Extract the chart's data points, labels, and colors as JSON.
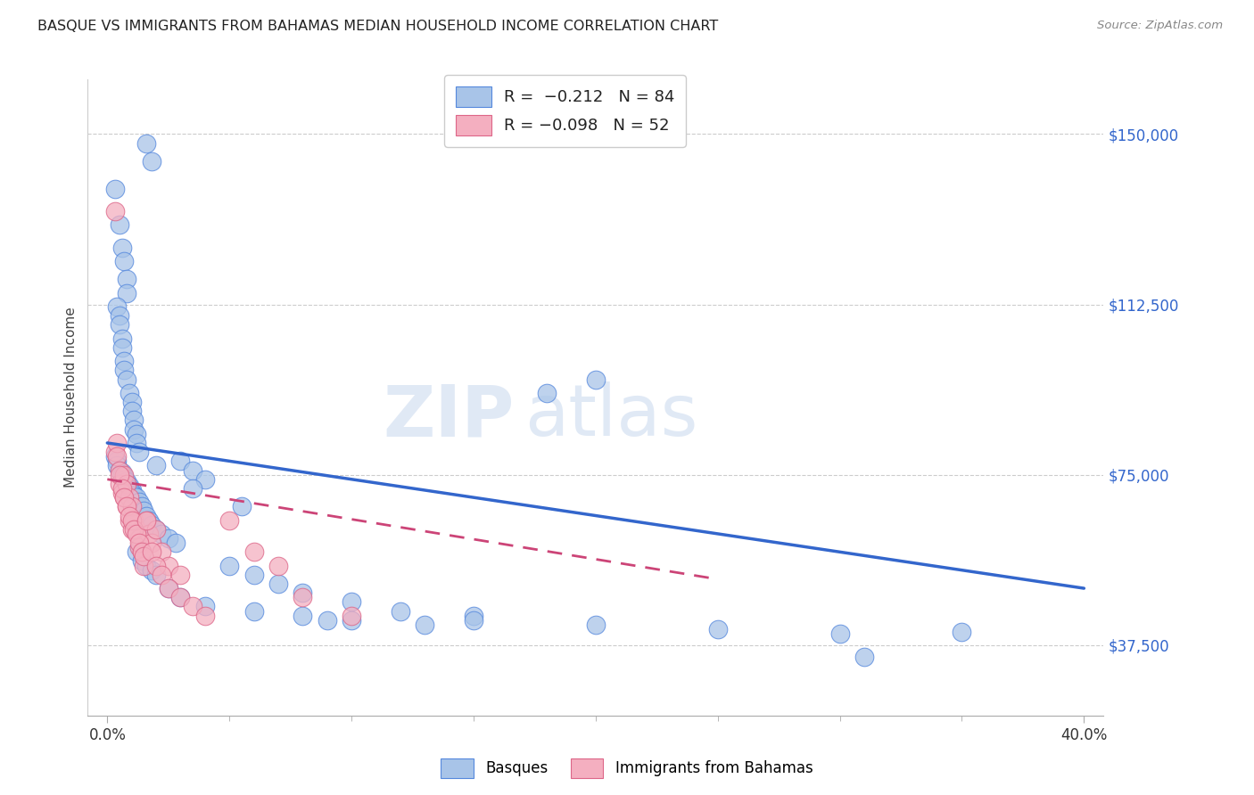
{
  "title": "BASQUE VS IMMIGRANTS FROM BAHAMAS MEDIAN HOUSEHOLD INCOME CORRELATION CHART",
  "source": "Source: ZipAtlas.com",
  "ylabel": "Median Household Income",
  "yticks": [
    37500,
    75000,
    112500,
    150000
  ],
  "ytick_labels": [
    "$37,500",
    "$75,000",
    "$112,500",
    "$150,000"
  ],
  "xlim": [
    0.0,
    0.4
  ],
  "ylim": [
    22000,
    162000
  ],
  "blue_color": "#a8c4e8",
  "pink_color": "#f4afc0",
  "blue_line_color": "#3366cc",
  "pink_line_color": "#cc4477",
  "blue_edge": "#5588dd",
  "pink_edge": "#dd6688",
  "watermark_zip": "ZIP",
  "watermark_atlas": "atlas",
  "blue_trend_x": [
    0.0,
    0.4
  ],
  "blue_trend_y": [
    82000,
    50000
  ],
  "pink_trend_x": [
    0.0,
    0.25
  ],
  "pink_trend_y": [
    74000,
    52000
  ],
  "basque_x": [
    0.016,
    0.018,
    0.003,
    0.005,
    0.006,
    0.007,
    0.008,
    0.008,
    0.004,
    0.005,
    0.005,
    0.006,
    0.006,
    0.007,
    0.007,
    0.008,
    0.009,
    0.01,
    0.01,
    0.011,
    0.011,
    0.012,
    0.012,
    0.013,
    0.003,
    0.004,
    0.004,
    0.005,
    0.006,
    0.006,
    0.007,
    0.007,
    0.008,
    0.008,
    0.009,
    0.009,
    0.01,
    0.01,
    0.011,
    0.012,
    0.013,
    0.014,
    0.015,
    0.016,
    0.017,
    0.018,
    0.02,
    0.022,
    0.025,
    0.028,
    0.03,
    0.035,
    0.04,
    0.05,
    0.06,
    0.07,
    0.08,
    0.1,
    0.12,
    0.15,
    0.012,
    0.014,
    0.016,
    0.018,
    0.02,
    0.025,
    0.03,
    0.04,
    0.06,
    0.08,
    0.1,
    0.15,
    0.2,
    0.25,
    0.3,
    0.35,
    0.31,
    0.2,
    0.18,
    0.02,
    0.035,
    0.055,
    0.09,
    0.13
  ],
  "basque_y": [
    148000,
    144000,
    138000,
    130000,
    125000,
    122000,
    118000,
    115000,
    112000,
    110000,
    108000,
    105000,
    103000,
    100000,
    98000,
    96000,
    93000,
    91000,
    89000,
    87000,
    85000,
    84000,
    82000,
    80000,
    79000,
    78000,
    77000,
    76000,
    75500,
    75000,
    74500,
    74000,
    73500,
    73000,
    72500,
    72000,
    71500,
    71000,
    70500,
    70000,
    69000,
    68000,
    67000,
    66000,
    65000,
    64000,
    63000,
    62000,
    61000,
    60000,
    78000,
    76000,
    74000,
    55000,
    53000,
    51000,
    49000,
    47000,
    45000,
    44000,
    58000,
    56000,
    55000,
    54000,
    53000,
    50000,
    48000,
    46000,
    45000,
    44000,
    43000,
    43000,
    42000,
    41000,
    40000,
    40500,
    35000,
    96000,
    93000,
    77000,
    72000,
    68000,
    43000,
    42000
  ],
  "bahamas_x": [
    0.003,
    0.003,
    0.004,
    0.004,
    0.005,
    0.005,
    0.006,
    0.007,
    0.007,
    0.008,
    0.008,
    0.009,
    0.009,
    0.01,
    0.01,
    0.011,
    0.012,
    0.013,
    0.013,
    0.014,
    0.015,
    0.016,
    0.017,
    0.018,
    0.02,
    0.022,
    0.025,
    0.03,
    0.005,
    0.006,
    0.007,
    0.008,
    0.009,
    0.01,
    0.011,
    0.012,
    0.013,
    0.014,
    0.015,
    0.016,
    0.018,
    0.02,
    0.022,
    0.025,
    0.03,
    0.035,
    0.04,
    0.05,
    0.06,
    0.07,
    0.08,
    0.1
  ],
  "bahamas_y": [
    133000,
    80000,
    82000,
    79000,
    76000,
    73000,
    71000,
    75000,
    70000,
    73000,
    68000,
    70000,
    65000,
    68000,
    63000,
    65000,
    63000,
    61000,
    59000,
    58000,
    55000,
    65000,
    62000,
    60000,
    63000,
    58000,
    55000,
    53000,
    75000,
    72000,
    70000,
    68000,
    66000,
    65000,
    63000,
    62000,
    60000,
    58000,
    57000,
    65000,
    58000,
    55000,
    53000,
    50000,
    48000,
    46000,
    44000,
    65000,
    58000,
    55000,
    48000,
    44000
  ]
}
